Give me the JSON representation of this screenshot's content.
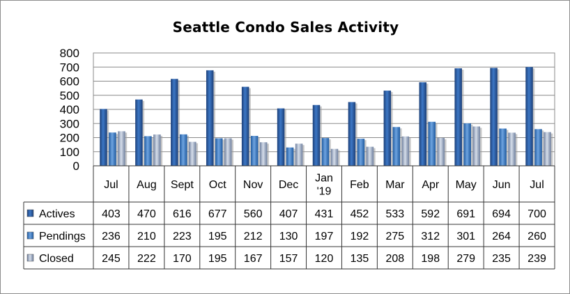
{
  "chart_data": {
    "type": "bar",
    "title": "Seattle Condo Sales Activity",
    "categories": [
      "Jul",
      "Aug",
      "Sept",
      "Oct",
      "Nov",
      "Dec",
      "Jan\n'19",
      "Feb",
      "Mar",
      "Apr",
      "May",
      "Jun",
      "Jul"
    ],
    "series": [
      {
        "name": "Actives",
        "values": [
          403,
          470,
          616,
          677,
          560,
          407,
          431,
          452,
          533,
          592,
          691,
          694,
          700
        ]
      },
      {
        "name": "Pendings",
        "values": [
          236,
          210,
          223,
          195,
          212,
          130,
          197,
          192,
          275,
          312,
          301,
          264,
          260
        ]
      },
      {
        "name": "Closed",
        "values": [
          245,
          222,
          170,
          195,
          167,
          157,
          120,
          135,
          208,
          198,
          279,
          235,
          239
        ]
      }
    ],
    "ylim": [
      0,
      800
    ],
    "yticks": [
      0,
      100,
      200,
      300,
      400,
      500,
      600,
      700,
      800
    ],
    "grid": true,
    "legend": "data table below chart",
    "colors": {
      "Actives": [
        "#1c3f78",
        "#3d78c6",
        "#1c3f78"
      ],
      "Pendings": [
        "#1e5aa0",
        "#6fa4e0",
        "#1e5aa0"
      ],
      "Closed": [
        "#6e7f9e",
        "#d6deea",
        "#6e7f9e"
      ]
    }
  }
}
